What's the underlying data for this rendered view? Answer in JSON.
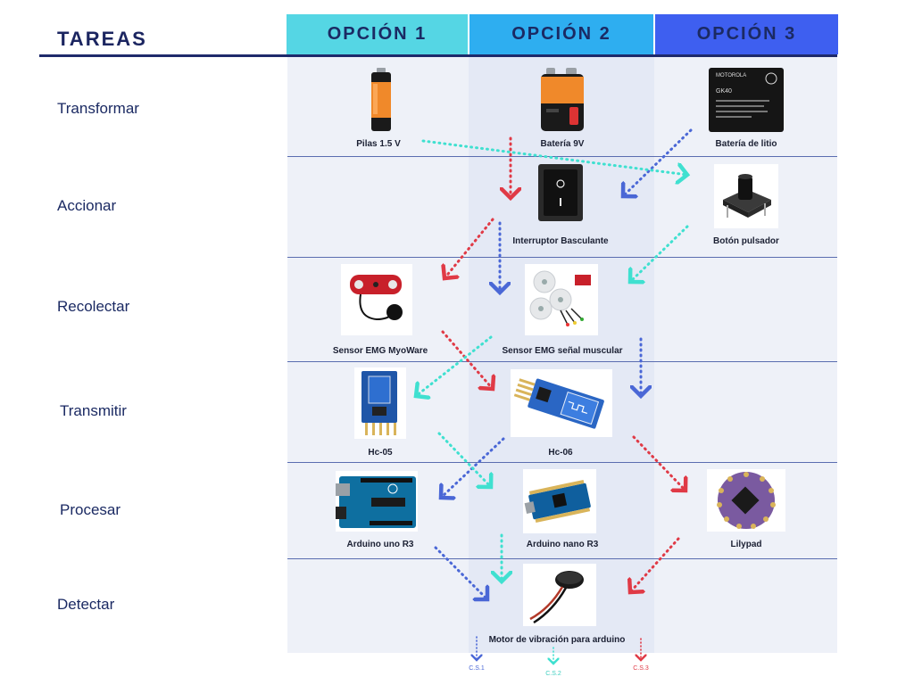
{
  "colors": {
    "opcion1": "#55d6e4",
    "opcion2": "#2eaef0",
    "opcion3": "#3e5ff0",
    "path_red": "#e03a46",
    "path_blue": "#4a67d6",
    "path_cyan": "#3fe0d0",
    "title": "#1b2560"
  },
  "header": {
    "tasks_title": "TAREAS",
    "options": [
      "OPCIÓN 1",
      "OPCIÓN 2",
      "OPCIÓN 3"
    ]
  },
  "rows": [
    {
      "task": "Transformar"
    },
    {
      "task": "Accionar"
    },
    {
      "task": "Recolectar"
    },
    {
      "task": "Transmitir"
    },
    {
      "task": "Procesar"
    },
    {
      "task": "Detectar"
    }
  ],
  "components": {
    "pilas": "Pilas 1.5 V",
    "bateria9v": "Batería 9V",
    "bateria_litio": "Batería de litio",
    "bateria_litio_brand": "MOTOROLA",
    "bateria_litio_model": "GK40",
    "interruptor": "Interruptor Basculante",
    "boton": "Botón pulsador",
    "sensor_myoware": "Sensor EMG MyoWare",
    "sensor_emg": "Sensor EMG señal muscular",
    "hc05": "Hc-05",
    "hc06": "Hc-06",
    "arduino_uno": "Arduino uno R3",
    "arduino_nano": "Arduino nano R3",
    "lilypad": "Lilypad",
    "motor": "Motor de vibración para arduino"
  },
  "legend": {
    "cs1": "C.S.1",
    "cs2": "C.S.2",
    "cs3": "C.S.3"
  }
}
